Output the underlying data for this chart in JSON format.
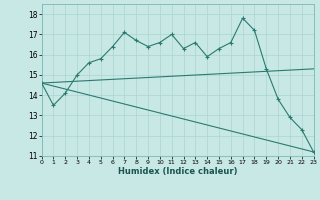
{
  "x": [
    0,
    1,
    2,
    3,
    4,
    5,
    6,
    7,
    8,
    9,
    10,
    11,
    12,
    13,
    14,
    15,
    16,
    17,
    18,
    19,
    20,
    21,
    22,
    23
  ],
  "y_zigzag": [
    14.6,
    13.5,
    14.1,
    15.0,
    15.6,
    15.8,
    16.4,
    17.1,
    16.7,
    16.4,
    16.6,
    17.0,
    16.3,
    16.6,
    15.9,
    16.3,
    16.6,
    17.8,
    17.2,
    15.3,
    13.8,
    12.9,
    12.3,
    11.2
  ],
  "y_ascend_start": 14.6,
  "y_ascend_end": 15.3,
  "y_descend_start": 14.6,
  "y_descend_end": 11.2,
  "color": "#2a7a70",
  "bg_color": "#c8e8e5",
  "grid_color": "#aad4d0",
  "xlabel": "Humidex (Indice chaleur)",
  "ylim": [
    11,
    18.5
  ],
  "xlim": [
    0,
    23
  ],
  "yticks": [
    11,
    12,
    13,
    14,
    15,
    16,
    17,
    18
  ],
  "xticks": [
    0,
    1,
    2,
    3,
    4,
    5,
    6,
    7,
    8,
    9,
    10,
    11,
    12,
    13,
    14,
    15,
    16,
    17,
    18,
    19,
    20,
    21,
    22,
    23
  ]
}
